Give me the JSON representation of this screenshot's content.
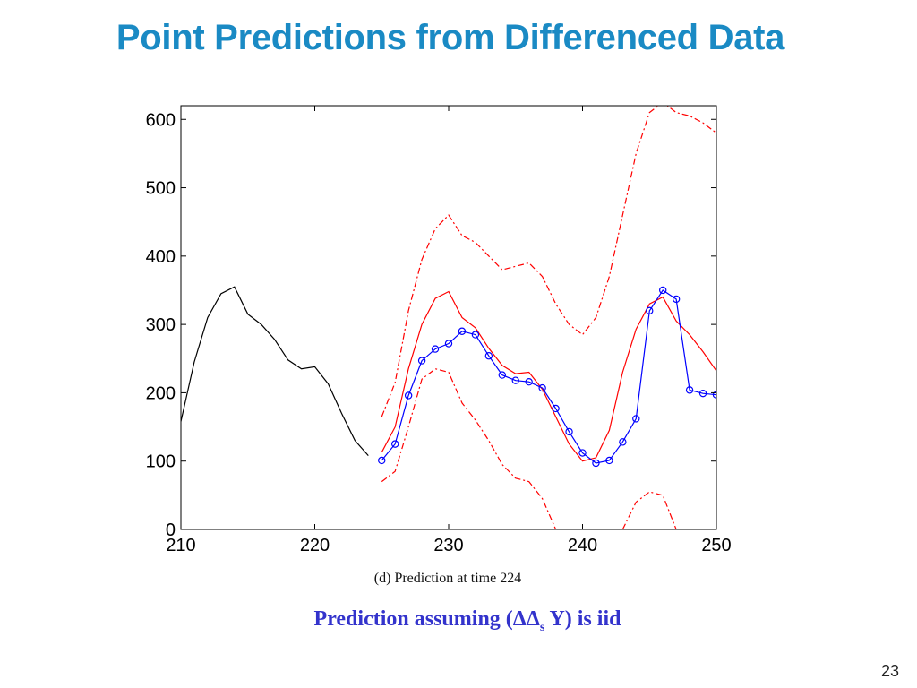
{
  "slide": {
    "title": "Point Predictions from Differenced Data",
    "page_number": "23",
    "title_color": "#1a8ac4",
    "caption_color": "#3333cc"
  },
  "caption": {
    "subfigure": "(d)  Prediction at time 224",
    "prediction_prefix": "Prediction assuming (ΔΔ",
    "prediction_sub": "s",
    "prediction_suffix": " Y) is iid"
  },
  "chart_data": {
    "type": "line",
    "title": "",
    "xlabel": "",
    "ylabel": "",
    "xlim": [
      210,
      250
    ],
    "ylim": [
      0,
      620
    ],
    "x_ticks": [
      210,
      220,
      230,
      240,
      250
    ],
    "y_ticks": [
      0,
      100,
      200,
      300,
      400,
      500,
      600
    ],
    "grid": false,
    "series": [
      {
        "style": "solid",
        "color": "#000000",
        "marker": "none",
        "x": [
          210,
          211,
          212,
          213,
          214,
          215,
          216,
          217,
          218,
          219,
          220,
          221,
          222,
          223,
          224
        ],
        "y": [
          158,
          245,
          310,
          345,
          355,
          315,
          300,
          278,
          248,
          235,
          238,
          213,
          170,
          130,
          108
        ]
      },
      {
        "style": "solid",
        "color": "#ff0000",
        "marker": "none",
        "x": [
          225,
          226,
          227,
          228,
          229,
          230,
          231,
          232,
          233,
          234,
          235,
          236,
          237,
          238,
          239,
          240,
          241,
          242,
          243,
          244,
          245,
          246,
          247,
          248,
          249,
          250
        ],
        "y": [
          113,
          150,
          235,
          300,
          338,
          348,
          310,
          295,
          265,
          240,
          228,
          230,
          205,
          165,
          125,
          100,
          105,
          145,
          230,
          293,
          330,
          340,
          305,
          285,
          260,
          232
        ]
      },
      {
        "style": "solid",
        "color": "#0000ff",
        "marker": "circle",
        "x": [
          225,
          226,
          227,
          228,
          229,
          230,
          231,
          232,
          233,
          234,
          235,
          236,
          237,
          238,
          239,
          240,
          241,
          242,
          243,
          244,
          245,
          246,
          247,
          248,
          249,
          250
        ],
        "y": [
          101,
          125,
          196,
          247,
          264,
          272,
          290,
          285,
          254,
          226,
          218,
          216,
          207,
          177,
          143,
          112,
          97,
          101,
          128,
          162,
          320,
          350,
          337,
          204,
          199,
          197
        ]
      },
      {
        "style": "dashdot",
        "color": "#ff0000",
        "marker": "none",
        "x": [
          225,
          226,
          227,
          228,
          229,
          230,
          231,
          232,
          233,
          234,
          235,
          236,
          237,
          238,
          239,
          240,
          241,
          242,
          243,
          244,
          245,
          246,
          247,
          248,
          249,
          250
        ],
        "y": [
          165,
          215,
          320,
          395,
          440,
          460,
          430,
          420,
          400,
          380,
          385,
          390,
          370,
          330,
          300,
          285,
          310,
          370,
          460,
          550,
          610,
          625,
          610,
          605,
          595,
          580
        ]
      },
      {
        "style": "dashdot",
        "color": "#ff0000",
        "marker": "none",
        "x": [
          225,
          226,
          227,
          228,
          229,
          230,
          231,
          232,
          233,
          234,
          235,
          236,
          237,
          238
        ],
        "y": [
          70,
          85,
          150,
          220,
          235,
          230,
          185,
          160,
          130,
          95,
          75,
          70,
          45,
          0
        ]
      },
      {
        "style": "dashdot",
        "color": "#ff0000",
        "marker": "none",
        "x": [
          243,
          244,
          245,
          246,
          247
        ],
        "y": [
          0,
          40,
          55,
          50,
          0
        ]
      }
    ]
  }
}
